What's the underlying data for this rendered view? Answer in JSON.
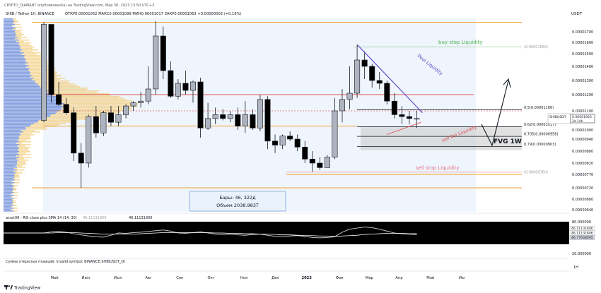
{
  "header": {
    "author_line": "CRYPTO_DIAMANT опубликовал(а) на TradingView.com, Мар 30, 2023 13:50 UTC+3",
    "symbol_line": "SHIB / Tether 1Н, BINANCE",
    "ohlc": "ОТКР0.00001062  МАКС0.00001099  МИН0.00001017  ЗАКР0.00001063  +0.00000002 (+0.19%)"
  },
  "footer": {
    "positions_text": "Сумма открытых позиций: Invalid symbol: BINANCE:SHIBUSDT_OI",
    "brand": "TradingView",
    "currency": "USDT",
    "interval": "1Н"
  },
  "colors": {
    "up_body": "#aeb4bf",
    "down_body": "#000000",
    "vp_blue": "#5d7fd6",
    "vp_yellow": "#f3d28a",
    "orange": "#f0a030",
    "red": "#e05050",
    "green": "#4caf50",
    "purple": "#5b3fc4",
    "pink": "#e06e8a",
    "rsi_bg": "#000000"
  },
  "chart_data": {
    "type": "candlestick",
    "price_axis_labels": [
      "0.00001700",
      "0.00001600",
      "0.00001500",
      "0.00001400",
      "0.00001300",
      "0.00001200",
      "0.00001100",
      "0.00001000",
      "0.00000940",
      "0.00000880",
      "0.00000820",
      "0.00000770",
      "0.00000720",
      "0.00000680",
      "0.00000640"
    ],
    "price_axis_values": [
      1.7e-05,
      1.6e-05,
      1.5e-05,
      1.4e-05,
      1.3e-05,
      1.2e-05,
      1.1e-05,
      1e-05,
      9.4e-06,
      8.8e-06,
      8.2e-06,
      7.7e-06,
      7.2e-06,
      6.8e-06,
      6.4e-06
    ],
    "time_axis_labels": [
      "Май",
      "Июн",
      "Июл",
      "Авг",
      "Сен",
      "Окт",
      "Ноя",
      "Дек",
      "2023",
      "Фев",
      "Мар",
      "Апр",
      "Май",
      "Ию"
    ],
    "time_axis_index": [
      2,
      6.2,
      10.5,
      14.6,
      18.8,
      23,
      27.4,
      31.6,
      35.8,
      40.2,
      44.2,
      48.2,
      52.4,
      56.6
    ],
    "candles": [
      [
        1.05e-05,
        1.79e-05,
        1.04e-05,
        1.77e-05
      ],
      [
        1.77e-05,
        1.77e-05,
        1.15e-05,
        1.2e-05
      ],
      [
        1.2e-05,
        1.29e-05,
        1.13e-05,
        1.14e-05
      ],
      [
        1.14e-05,
        1.18e-05,
        1.08e-05,
        1.09e-05
      ],
      [
        1.09e-05,
        1.12e-05,
        8.3e-06,
        8.7e-06
      ],
      [
        8.7e-06,
        9.2e-06,
        7.2e-06,
        8.2e-06
      ],
      [
        8.2e-06,
        1.08e-05,
        8e-06,
        1.07e-05
      ],
      [
        1.07e-05,
        1.13e-05,
        9.5e-06,
        9.8e-06
      ],
      [
        9.8e-06,
        1.1e-05,
        9.6e-06,
        1.09e-05
      ],
      [
        1.09e-05,
        1.13e-05,
        1.02e-05,
        1.04e-05
      ],
      [
        1.04e-05,
        1.13e-05,
        1.02e-05,
        1.08e-05
      ],
      [
        1.08e-05,
        1.14e-05,
        1.06e-05,
        1.13e-05
      ],
      [
        1.13e-05,
        1.16e-05,
        1.1e-05,
        1.15e-05
      ],
      [
        1.15e-05,
        1.22e-05,
        1.12e-05,
        1.16e-05
      ],
      [
        1.16e-05,
        1.4e-05,
        1.14e-05,
        1.24e-05
      ],
      [
        1.24e-05,
        1.8e-05,
        1.2e-05,
        1.66e-05
      ],
      [
        1.66e-05,
        1.75e-05,
        1.31e-05,
        1.37e-05
      ],
      [
        1.37e-05,
        1.44e-05,
        1.18e-05,
        1.19e-05
      ],
      [
        1.19e-05,
        1.31e-05,
        1.17e-05,
        1.28e-05
      ],
      [
        1.28e-05,
        1.37e-05,
        1.2e-05,
        1.23e-05
      ],
      [
        1.23e-05,
        1.3e-05,
        1.15e-05,
        1.29e-05
      ],
      [
        1.29e-05,
        1.32e-05,
        9.5e-06,
        1.01e-05
      ],
      [
        1.01e-05,
        1.15e-05,
        1e-05,
        1.06e-05
      ],
      [
        1.06e-05,
        1.12e-05,
        1.03e-05,
        1.08e-05
      ],
      [
        1.08e-05,
        1.11e-05,
        1.05e-05,
        1.06e-05
      ],
      [
        1.06e-05,
        1.1e-05,
        1.04e-05,
        1.08e-05
      ],
      [
        1.08e-05,
        1.12e-05,
        1e-05,
        1.02e-05
      ],
      [
        1.02e-05,
        1.16e-05,
        9.8e-06,
        1.08e-05
      ],
      [
        1.08e-05,
        1.11e-05,
        1e-05,
        1.01e-05
      ],
      [
        1.01e-05,
        1.2e-05,
        9.9e-06,
        1.17e-05
      ],
      [
        1.17e-05,
        1.19e-05,
        8.9e-06,
        9.3e-06
      ],
      [
        9.3e-06,
        9.7e-06,
        8.7e-06,
        9.1e-06
      ],
      [
        9.1e-06,
        9.7e-06,
        8.9e-06,
        9.6e-06
      ],
      [
        9.6e-06,
        9.9e-06,
        9.3e-06,
        9.4e-06
      ],
      [
        9.4e-06,
        9.7e-06,
        8.8e-06,
        9e-06
      ],
      [
        9e-06,
        9.3e-06,
        8.2e-06,
        8.4e-06
      ],
      [
        8.4e-06,
        8.8e-06,
        7.8e-06,
        8.2e-06
      ],
      [
        8.2e-06,
        8.5e-06,
        7.9e-06,
        8e-06
      ],
      [
        8e-06,
        8.6e-06,
        8e-06,
        8.5e-06
      ],
      [
        8.5e-06,
        1.18e-05,
        8.4e-06,
        1.1e-05
      ],
      [
        1.1e-05,
        1.24e-05,
        1.04e-05,
        1.17e-05
      ],
      [
        1.17e-05,
        1.4e-05,
        1.11e-05,
        1.21e-05
      ],
      [
        1.21e-05,
        1.58e-05,
        1.18e-05,
        1.45e-05
      ],
      [
        1.45e-05,
        1.52e-05,
        1.31e-05,
        1.4e-05
      ],
      [
        1.4e-05,
        1.42e-05,
        1.25e-05,
        1.3e-05
      ],
      [
        1.3e-05,
        1.36e-05,
        1.24e-05,
        1.28e-05
      ],
      [
        1.28e-05,
        1.3e-05,
        1.14e-05,
        1.16e-05
      ],
      [
        1.16e-05,
        1.21e-05,
        1.06e-05,
        1.08e-05
      ],
      [
        1.08e-05,
        1.13e-05,
        1.03e-05,
        1.07e-05
      ],
      [
        1.07e-05,
        1.1e-05,
        1.03e-05,
        1.06e-05
      ],
      [
        1.06e-05,
        1.1e-05,
        1.01e-05,
        1.06e-05
      ]
    ],
    "horizontal_levels": [
      {
        "price": 1.79e-05,
        "color": "orange"
      },
      {
        "price": 1.2e-05,
        "color": "red"
      },
      {
        "price": 1.1e-05,
        "color": "red-dashed"
      },
      {
        "price": 1.02e-05,
        "color": "orange"
      },
      {
        "price": 7.7e-06,
        "color": "orange"
      },
      {
        "price": 7.2e-06,
        "color": "orange"
      }
    ],
    "fib_levels": [
      {
        "label": "0.5(0.00001106)",
        "price": 1.106e-05
      },
      {
        "label": "0.62(0.00001017)",
        "price": 1.017e-05
      },
      {
        "label": "0.705(0.00000958)",
        "price": 9.58e-06
      },
      {
        "label": "0.79(0.00000903)",
        "price": 9.03e-06
      }
    ],
    "annotations": {
      "buy_stop": "buy stop Liquidity",
      "buy_stop_value": "(0.00001560)",
      "pool": "Pool Liquidity",
      "sell_bsl": "sell Bsl Liquidity",
      "sell_stop": "sell stop Liquidity",
      "sell_stop_value": "(0.00000780)",
      "fvg": "FVG 1W"
    },
    "price_tag": {
      "symbol": "SHIBUSDT",
      "value": "0.00001063",
      "time": "3d 14h"
    },
    "volume_box": {
      "line1": "Бары: 46, 322д",
      "line2": "Объем 2038.983Т"
    },
    "rsi": {
      "title": "acurt99 - RSI close plus SMA 14 (14, 30)",
      "value1": "46.11131806",
      "value2": "46.11131806",
      "axis_labels": [
        "80.000000",
        "60.000000",
        "20.000000"
      ],
      "tags": [
        "46.11131806",
        "46.11131806",
        "46.77648095"
      ],
      "rsi": [
        50,
        53,
        55,
        52,
        48,
        45,
        42,
        40,
        39,
        44,
        50,
        49,
        51,
        52,
        54,
        56,
        58,
        55,
        50,
        49,
        51,
        53,
        50,
        47,
        46,
        47,
        45,
        44,
        46,
        47,
        44,
        41,
        40,
        42,
        43,
        41,
        38,
        37,
        38,
        40,
        52,
        60,
        63,
        66,
        64,
        60,
        55,
        50,
        48,
        47,
        46
      ],
      "sma": [
        50,
        50,
        51,
        51,
        51,
        50,
        49,
        48,
        47,
        47,
        47,
        47,
        47,
        48,
        49,
        50,
        51,
        51,
        51,
        51,
        51,
        51,
        51,
        50,
        50,
        49,
        49,
        48,
        48,
        47,
        47,
        46,
        45,
        45,
        44,
        43,
        43,
        42,
        42,
        41,
        42,
        43,
        44,
        46,
        47,
        48,
        49,
        49,
        49,
        48,
        48
      ]
    }
  }
}
